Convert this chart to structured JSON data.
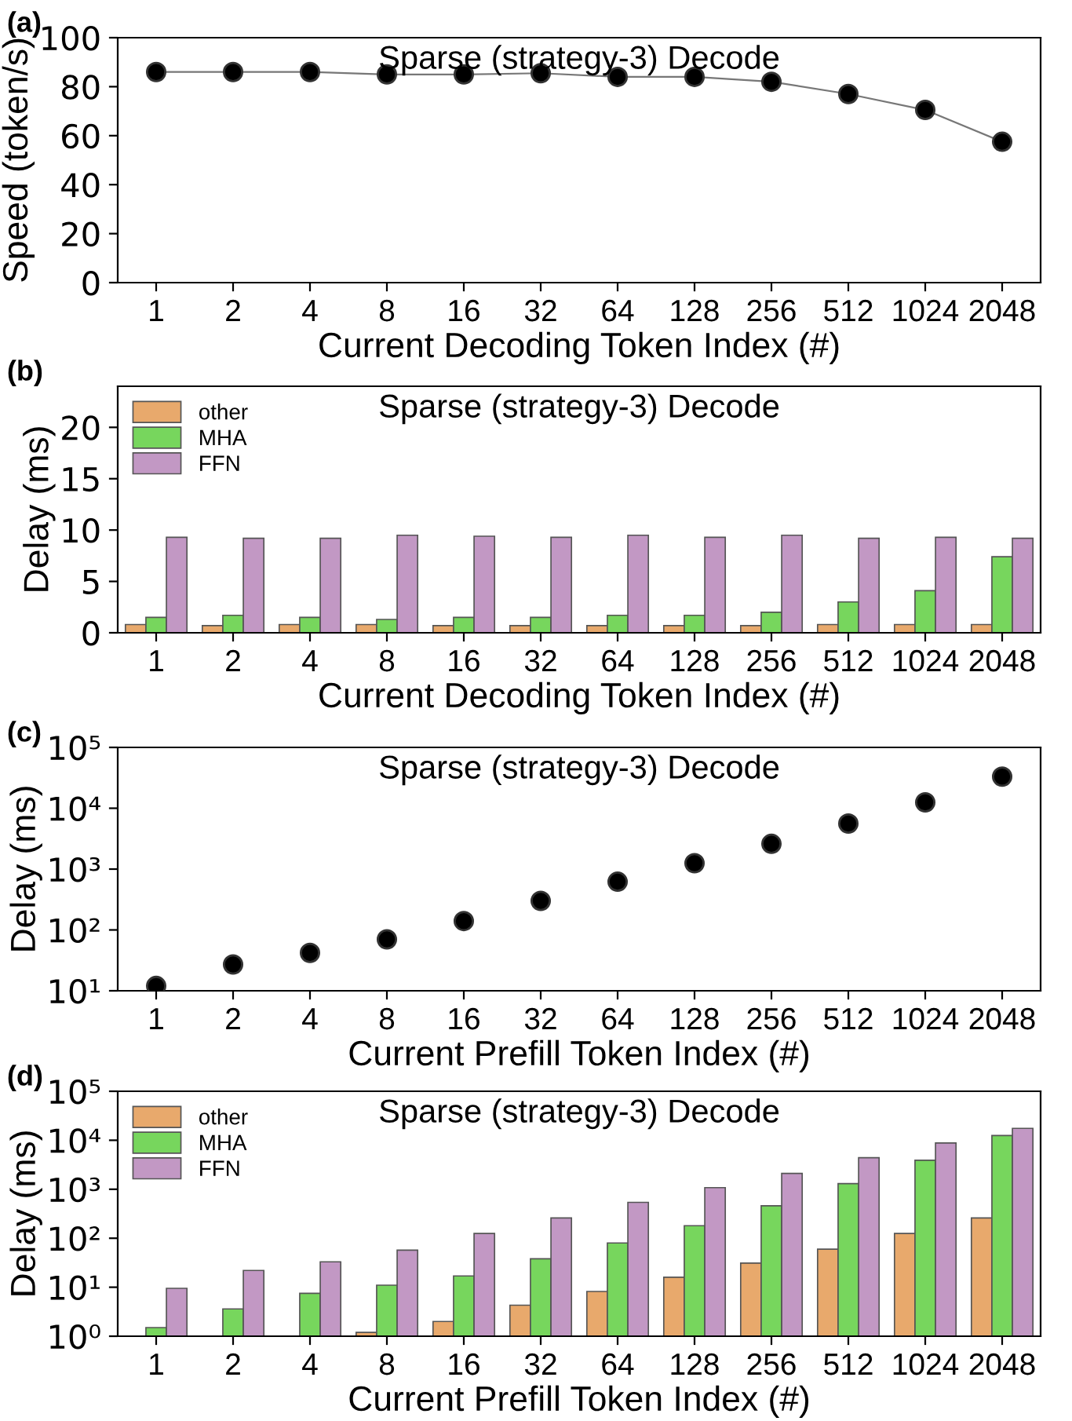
{
  "chart_data": [
    {
      "type": "line",
      "title": "Sparse (strategy-3) Decode",
      "xlabel": "Current Decoding Token Index (#)",
      "ylabel": "Speed (token/s)",
      "annotations": [
        "(a)"
      ],
      "categories": [
        "1",
        "2",
        "4",
        "8",
        "16",
        "32",
        "64",
        "128",
        "256",
        "512",
        "1024",
        "2048"
      ],
      "series": [
        {
          "color": "#000000",
          "values": [
            86,
            86,
            86,
            85,
            85,
            85.5,
            84,
            84,
            82,
            77,
            70.5,
            57.5
          ]
        }
      ],
      "ylim": [
        0,
        100
      ],
      "yticks": [
        0,
        20,
        40,
        60,
        80,
        100
      ],
      "marker": "circle",
      "line_style": "solid",
      "grid": false,
      "legend": false
    },
    {
      "type": "bar",
      "title": "Sparse (strategy-3) Decode",
      "xlabel": "Current Decoding Token Index (#)",
      "ylabel": "Delay (ms)",
      "annotations": [
        "(b)"
      ],
      "categories": [
        "1",
        "2",
        "4",
        "8",
        "16",
        "32",
        "64",
        "128",
        "256",
        "512",
        "1024",
        "2048"
      ],
      "series": [
        {
          "name": "other",
          "color": "#e8a96c",
          "values": [
            0.8,
            0.7,
            0.8,
            0.8,
            0.7,
            0.7,
            0.7,
            0.7,
            0.7,
            0.8,
            0.8,
            0.8
          ]
        },
        {
          "name": "MHA",
          "color": "#77d65d",
          "values": [
            1.5,
            1.7,
            1.5,
            1.3,
            1.5,
            1.5,
            1.7,
            1.7,
            2.0,
            3.0,
            4.1,
            7.4
          ]
        },
        {
          "name": "FFN",
          "color": "#c298c4",
          "values": [
            9.3,
            9.2,
            9.2,
            9.5,
            9.4,
            9.3,
            9.5,
            9.3,
            9.5,
            9.2,
            9.3,
            9.2
          ]
        }
      ],
      "ylim": [
        0,
        24
      ],
      "yticks": [
        0,
        5,
        10,
        15,
        20
      ],
      "grid": false,
      "legend": "top left"
    },
    {
      "type": "scatter",
      "title": "Sparse (strategy-3) Decode",
      "xlabel": "Current Prefill Token Index (#)",
      "ylabel": "Delay (ms)",
      "annotations": [
        "(c)"
      ],
      "categories": [
        "1",
        "2",
        "4",
        "8",
        "16",
        "32",
        "64",
        "128",
        "256",
        "512",
        "1024",
        "2048"
      ],
      "series": [
        {
          "color": "#000000",
          "values": [
            12,
            27,
            42,
            70,
            140,
            300,
            620,
            1250,
            2600,
            5600,
            12500,
            33000
          ]
        }
      ],
      "log": "y",
      "ylim": [
        10,
        100000
      ],
      "yticks": [
        {
          "value": 10,
          "label": "10¹"
        },
        {
          "value": 100,
          "label": "10²"
        },
        {
          "value": 1000,
          "label": "10³"
        },
        {
          "value": 10000,
          "label": "10⁴"
        },
        {
          "value": 100000,
          "label": "10⁵"
        }
      ],
      "marker": "circle",
      "grid": false,
      "legend": false
    },
    {
      "type": "bar",
      "title": "Sparse (strategy-3) Decode",
      "xlabel": "Current Prefill Token Index (#)",
      "ylabel": "Delay (ms)",
      "annotations": [
        "(d)"
      ],
      "categories": [
        "1",
        "2",
        "4",
        "8",
        "16",
        "32",
        "64",
        "128",
        "256",
        "512",
        "1024",
        "2048"
      ],
      "series": [
        {
          "name": "other",
          "color": "#e8a96c",
          "values": [
            null,
            null,
            null,
            1.2,
            2,
            4.3,
            8.2,
            16,
            31,
            60,
            125,
            260
          ]
        },
        {
          "name": "MHA",
          "color": "#77d65d",
          "values": [
            1.5,
            3.6,
            7.5,
            11,
            17,
            38,
            80,
            180,
            460,
            1300,
            3900,
            12500
          ]
        },
        {
          "name": "FFN",
          "color": "#c298c4",
          "values": [
            9.5,
            22,
            33,
            57,
            125,
            260,
            540,
            1080,
            2100,
            4400,
            8800,
            17500
          ]
        }
      ],
      "log": "y",
      "ylim": [
        1,
        100000
      ],
      "yticks": [
        {
          "value": 1,
          "label": "10⁰"
        },
        {
          "value": 10,
          "label": "10¹"
        },
        {
          "value": 100,
          "label": "10²"
        },
        {
          "value": 1000,
          "label": "10³"
        },
        {
          "value": 10000,
          "label": "10⁴"
        },
        {
          "value": 100000,
          "label": "10⁵"
        }
      ],
      "grid": false,
      "legend": "top left"
    }
  ]
}
